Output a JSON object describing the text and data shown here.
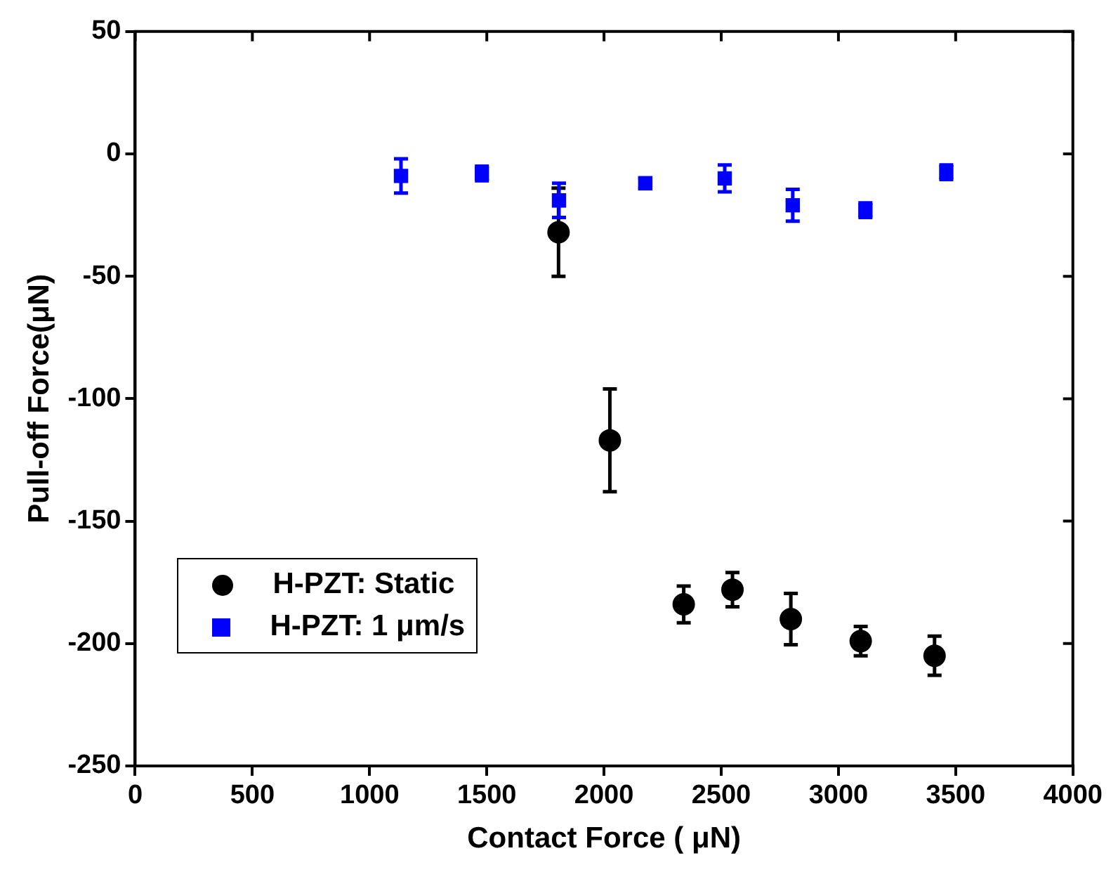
{
  "chart_data": {
    "type": "scatter",
    "xlabel": "Contact Force ( μN)",
    "ylabel": "Pull-off Force(μN)",
    "xlim": [
      0,
      4000
    ],
    "xticks": [
      0,
      500,
      1000,
      1500,
      2000,
      2500,
      3000,
      3500,
      4000
    ],
    "ylim": [
      -250,
      50
    ],
    "yticks": [
      -250,
      -200,
      -150,
      -100,
      -50,
      0,
      50
    ],
    "grid": false,
    "legend": "bottom left",
    "series": [
      {
        "name": "H-PZT: Static",
        "color": "#000000",
        "marker": "circle",
        "x": [
          1806,
          2025,
          2340,
          2548,
          2797,
          3095,
          3410
        ],
        "values": [
          -32,
          -117,
          -184,
          -178,
          -190,
          -199,
          -205
        ],
        "errors": [
          18,
          21,
          7.5,
          7,
          10.5,
          6,
          8
        ]
      },
      {
        "name": "H-PZT: 1 μm/s",
        "color": "#0000ff",
        "marker": "square",
        "x": [
          1134,
          1479,
          1808,
          2176,
          2515,
          2805,
          3115,
          3460
        ],
        "values": [
          -9,
          -8,
          -19,
          -12,
          -10,
          -21,
          -23,
          -7.5
        ],
        "errors": [
          7,
          3,
          7,
          2,
          5.5,
          6.5,
          3,
          3
        ]
      }
    ]
  }
}
